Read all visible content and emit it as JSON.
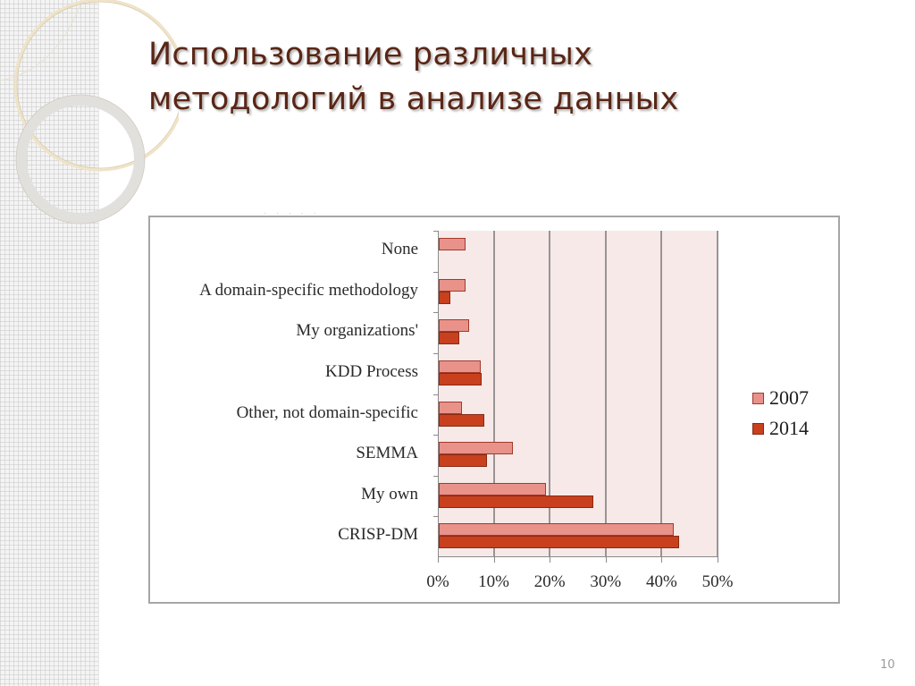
{
  "slide": {
    "title_lines": [
      "Использование различных",
      "методологий в анализе данных"
    ],
    "page_number": "10"
  },
  "colors": {
    "title": "#5a2616",
    "series_2007": "#e8928a",
    "series_2014": "#c8401e",
    "plot_background": "#f6e9e8"
  },
  "chart_data": {
    "type": "bar",
    "orientation": "horizontal",
    "title": "",
    "xlabel": "",
    "ylabel": "",
    "categories": [
      "None",
      "A domain-specific methodology",
      "My organizations'",
      "KDD Process",
      "Other, not domain-specific",
      "SEMMA",
      "My own",
      "CRISP-DM"
    ],
    "series": [
      {
        "name": "2007",
        "color": "#e8928a",
        "values": [
          4.8,
          4.8,
          5.4,
          7.5,
          4.2,
          13.2,
          19.2,
          42.0
        ]
      },
      {
        "name": "2014",
        "color": "#c8401e",
        "values": [
          0,
          2.1,
          3.7,
          7.7,
          8.2,
          8.7,
          27.6,
          43.0
        ]
      }
    ],
    "xlim": [
      0,
      50
    ],
    "x_ticks": [
      "0%",
      "10%",
      "20%",
      "30%",
      "40%",
      "50%"
    ],
    "unit": "%",
    "grid": "vertical",
    "legend": {
      "position": "right",
      "entries": [
        "2007",
        "2014"
      ]
    }
  }
}
